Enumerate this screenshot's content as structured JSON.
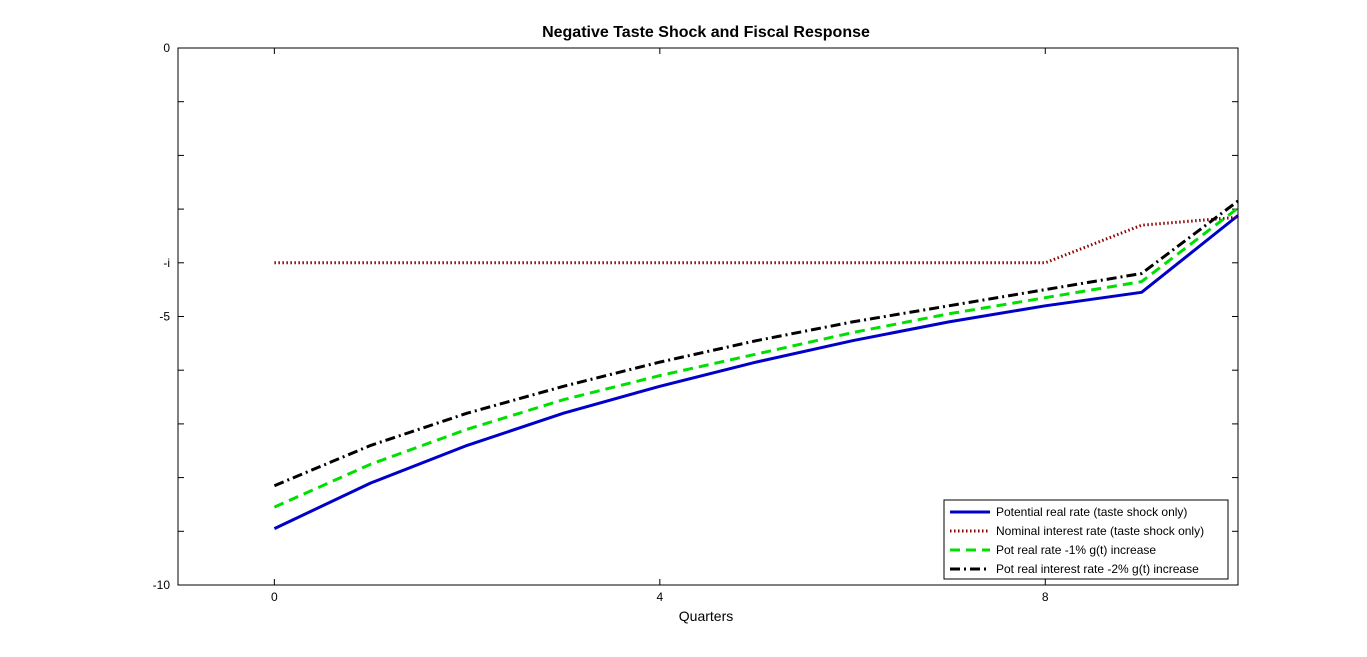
{
  "chart_data": {
    "type": "line",
    "title": "Negative Taste Shock and Fiscal Response",
    "xlabel": "Quarters",
    "ylabel": "",
    "xlim": [
      -1,
      10
    ],
    "ylim": [
      -10,
      0
    ],
    "xticks": [
      0,
      4,
      8
    ],
    "xtick_labels": [
      "0",
      "4",
      "8"
    ],
    "yticks": [
      -10,
      -9,
      -8,
      -7,
      -6,
      -5,
      -4,
      -3,
      -2,
      -1,
      0
    ],
    "ytick_labels": [
      "-10",
      "",
      "",
      "",
      "",
      "-5",
      "-i",
      "",
      "",
      "",
      "0"
    ],
    "grid": false,
    "legend_position": "bottom-right",
    "x": [
      0,
      1,
      2,
      3,
      4,
      5,
      6,
      7,
      8,
      9,
      10
    ],
    "series": [
      {
        "name": "Potential real rate (taste shock only)",
        "color": "#0000c8",
        "style": "solid",
        "values": [
          -8.95,
          -8.1,
          -7.4,
          -6.8,
          -6.3,
          -5.85,
          -5.45,
          -5.1,
          -4.8,
          -4.55,
          -3.12
        ]
      },
      {
        "name": "Nominal interest rate (taste shock only)",
        "color": "#8b0000",
        "style": "dotted",
        "values": [
          -4.0,
          -4.0,
          -4.0,
          -4.0,
          -4.0,
          -4.0,
          -4.0,
          -4.0,
          -4.0,
          -3.3,
          -3.15
        ]
      },
      {
        "name": "Pot real rate -1% g(t) increase",
        "color": "#00e000",
        "style": "dashed",
        "values": [
          -8.55,
          -7.75,
          -7.1,
          -6.55,
          -6.1,
          -5.7,
          -5.3,
          -4.95,
          -4.65,
          -4.35,
          -2.98
        ]
      },
      {
        "name": "Pot real interest rate -2% g(t) increase",
        "color": "#000000",
        "style": "dashdot",
        "values": [
          -8.15,
          -7.4,
          -6.8,
          -6.3,
          -5.85,
          -5.45,
          -5.1,
          -4.8,
          -4.5,
          -4.2,
          -2.85
        ]
      }
    ]
  }
}
